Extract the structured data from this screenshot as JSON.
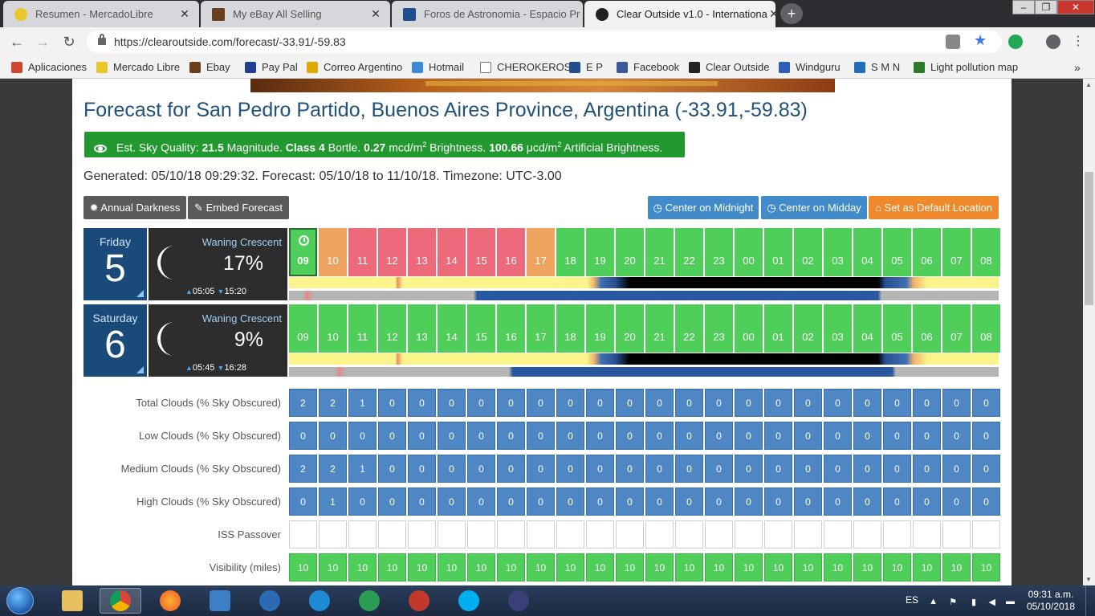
{
  "browser": {
    "tabs": [
      {
        "label": "Resumen - MercadoLibre",
        "active": false,
        "favicon_color": "#e8c72d"
      },
      {
        "label": "My eBay All Selling",
        "active": false,
        "favicon_color": "#6b3e1e"
      },
      {
        "label": "Foros de Astronomia - Espacio Pr",
        "active": false,
        "favicon_color": "#1f4f8f"
      },
      {
        "label": "Clear Outside v1.0 - Internationa",
        "active": true,
        "favicon_color": "#222222"
      }
    ],
    "url": "https://clearoutside.com/forecast/-33.91/-59.83",
    "bookmarks": [
      {
        "label": "Aplicaciones",
        "icon": "apps-grid-icon",
        "color": "#d2452f"
      },
      {
        "label": "Mercado Libre",
        "icon": "mercadolibre-icon",
        "color": "#e8c72d"
      },
      {
        "label": "Ebay",
        "icon": "ebay-icon",
        "color": "#6b3e1e"
      },
      {
        "label": "Pay Pal",
        "icon": "paypal-icon",
        "color": "#1f3f8f"
      },
      {
        "label": "Correo Argentino",
        "icon": "correo-icon",
        "color": "#e0a800"
      },
      {
        "label": "Hotmail",
        "icon": "windows-icon",
        "color": "#3a8ad8"
      },
      {
        "label": "CHEROKEROS",
        "icon": "page-icon",
        "color": "#ffffff"
      },
      {
        "label": "E P",
        "icon": "forum-icon",
        "color": "#1f4f8f"
      },
      {
        "label": "Facebook",
        "icon": "facebook-icon",
        "color": "#3b5998"
      },
      {
        "label": "Clear Outside",
        "icon": "clearoutside-icon",
        "color": "#222222"
      },
      {
        "label": "Windguru",
        "icon": "windguru-icon",
        "color": "#2e5fb8"
      },
      {
        "label": "S M N",
        "icon": "smn-icon",
        "color": "#1f6fb8"
      },
      {
        "label": "Light pollution map",
        "icon": "lightpollution-icon",
        "color": "#2a7a2a"
      }
    ],
    "more_bookmarks": "»"
  },
  "page": {
    "title": "Forecast for San Pedro Partido, Buenos Aires Province, Argentina (-33.91,-59.83)",
    "sky_quality": {
      "prefix": "Est. Sky Quality:",
      "magnitude": "21.5",
      "magnitude_unit": "Magnitude.",
      "bortle": "Class 4",
      "bortle_unit": "Bortle.",
      "brightness": "0.27",
      "brightness_unit": "mcd/m",
      "brightness_suffix": "Brightness.",
      "artificial": "100.66",
      "artificial_unit": "μcd/m",
      "artificial_suffix": "Artificial Brightness.",
      "sup": "2"
    },
    "generated": "Generated: 05/10/18 09:29:32. Forecast: 05/10/18 to 11/10/18. Timezone: UTC-3.00",
    "buttons": {
      "annual_darkness": "Annual Darkness",
      "embed_forecast": "Embed Forecast",
      "center_midnight": "Center on Midnight",
      "center_midday": "Center on Midday",
      "set_default": "Set as Default Location"
    },
    "days": [
      {
        "name": "Friday",
        "number": "5",
        "phase": "Waning Crescent",
        "illumination": "17%",
        "rise": "05:05",
        "set": "15:20",
        "hours": [
          "09",
          "10",
          "11",
          "12",
          "13",
          "14",
          "15",
          "16",
          "17",
          "18",
          "19",
          "20",
          "21",
          "22",
          "23",
          "00",
          "01",
          "02",
          "03",
          "04",
          "05",
          "06",
          "07",
          "08"
        ],
        "ratings": [
          "good",
          "ok",
          "bad",
          "bad",
          "bad",
          "bad",
          "bad",
          "bad",
          "ok",
          "good",
          "good",
          "good",
          "good",
          "good",
          "good",
          "good",
          "good",
          "good",
          "good",
          "good",
          "good",
          "good",
          "good",
          "good"
        ],
        "current_hour_index": 0
      },
      {
        "name": "Saturday",
        "number": "6",
        "phase": "Waning Crescent",
        "illumination": "9%",
        "rise": "05:45",
        "set": "16:28",
        "hours": [
          "09",
          "10",
          "11",
          "12",
          "13",
          "14",
          "15",
          "16",
          "17",
          "18",
          "19",
          "20",
          "21",
          "22",
          "23",
          "00",
          "01",
          "02",
          "03",
          "04",
          "05",
          "06",
          "07",
          "08"
        ],
        "ratings": [
          "good",
          "good",
          "good",
          "good",
          "good",
          "good",
          "good",
          "good",
          "good",
          "good",
          "good",
          "good",
          "good",
          "good",
          "good",
          "good",
          "good",
          "good",
          "good",
          "good",
          "good",
          "good",
          "good",
          "good"
        ],
        "current_hour_index": -1
      }
    ],
    "rating_colors": {
      "good": "#4fcf5a",
      "ok": "#eea35f",
      "bad": "#ec6a79"
    },
    "details": [
      {
        "label": "Total Clouds (% Sky Obscured)",
        "type": "blue",
        "values": [
          "2",
          "2",
          "1",
          "0",
          "0",
          "0",
          "0",
          "0",
          "0",
          "0",
          "0",
          "0",
          "0",
          "0",
          "0",
          "0",
          "0",
          "0",
          "0",
          "0",
          "0",
          "0",
          "0",
          "0"
        ]
      },
      {
        "label": "Low Clouds (% Sky Obscured)",
        "type": "blue",
        "values": [
          "0",
          "0",
          "0",
          "0",
          "0",
          "0",
          "0",
          "0",
          "0",
          "0",
          "0",
          "0",
          "0",
          "0",
          "0",
          "0",
          "0",
          "0",
          "0",
          "0",
          "0",
          "0",
          "0",
          "0"
        ]
      },
      {
        "label": "Medium Clouds (% Sky Obscured)",
        "type": "blue",
        "values": [
          "2",
          "2",
          "1",
          "0",
          "0",
          "0",
          "0",
          "0",
          "0",
          "0",
          "0",
          "0",
          "0",
          "0",
          "0",
          "0",
          "0",
          "0",
          "0",
          "0",
          "0",
          "0",
          "0",
          "0"
        ]
      },
      {
        "label": "High Clouds (% Sky Obscured)",
        "type": "blue",
        "values": [
          "0",
          "1",
          "0",
          "0",
          "0",
          "0",
          "0",
          "0",
          "0",
          "0",
          "0",
          "0",
          "0",
          "0",
          "0",
          "0",
          "0",
          "0",
          "0",
          "0",
          "0",
          "0",
          "0",
          "0"
        ]
      },
      {
        "label": "ISS Passover",
        "type": "empty",
        "values": [
          "",
          "",
          "",
          "",
          "",
          "",
          "",
          "",
          "",
          "",
          "",
          "",
          "",
          "",
          "",
          "",
          "",
          "",
          "",
          "",
          "",
          "",
          "",
          ""
        ]
      },
      {
        "label": "Visibility (miles)",
        "type": "green",
        "values": [
          "10",
          "10",
          "10",
          "10",
          "10",
          "10",
          "10",
          "10",
          "10",
          "10",
          "10",
          "10",
          "10",
          "10",
          "10",
          "10",
          "10",
          "10",
          "10",
          "10",
          "10",
          "10",
          "10",
          "10"
        ]
      }
    ]
  },
  "taskbar": {
    "language": "ES",
    "time": "09:31 a.m.",
    "date": "05/10/2018"
  }
}
